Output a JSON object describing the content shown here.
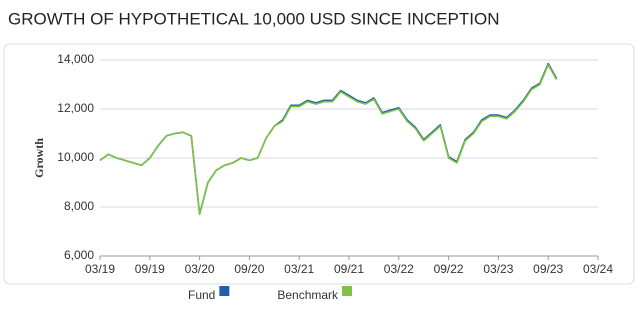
{
  "chart_data": {
    "type": "line",
    "title": "GROWTH OF HYPOTHETICAL 10,000 USD SINCE INCEPTION",
    "y_label": "Growth",
    "x": [
      "2019-03",
      "2019-04",
      "2019-05",
      "2019-06",
      "2019-07",
      "2019-08",
      "2019-09",
      "2019-10",
      "2019-11",
      "2019-12",
      "2020-01",
      "2020-02",
      "2020-03",
      "2020-04",
      "2020-05",
      "2020-06",
      "2020-07",
      "2020-08",
      "2020-09",
      "2020-10",
      "2020-11",
      "2020-12",
      "2021-01",
      "2021-02",
      "2021-03",
      "2021-04",
      "2021-05",
      "2021-06",
      "2021-07",
      "2021-08",
      "2021-09",
      "2021-10",
      "2021-11",
      "2021-12",
      "2022-01",
      "2022-02",
      "2022-03",
      "2022-04",
      "2022-05",
      "2022-06",
      "2022-07",
      "2022-08",
      "2022-09",
      "2022-10",
      "2022-11",
      "2022-12",
      "2023-01",
      "2023-02",
      "2023-03",
      "2023-04",
      "2023-05",
      "2023-06",
      "2023-07",
      "2023-08",
      "2023-09",
      "2023-10"
    ],
    "series": [
      {
        "name": "Fund",
        "color": "#1f5fa8",
        "values": [
          9900,
          10150,
          10000,
          9900,
          9800,
          9700,
          10000,
          10500,
          10900,
          11000,
          11050,
          10900,
          7700,
          9000,
          9500,
          9700,
          9800,
          10000,
          9900,
          10000,
          10800,
          11300,
          11550,
          12150,
          12150,
          12350,
          12250,
          12350,
          12350,
          12750,
          12550,
          12350,
          12250,
          12450,
          11850,
          11950,
          12050,
          11550,
          11250,
          10750,
          11050,
          11350,
          10050,
          9850,
          10750,
          11050,
          11550,
          11750,
          11750,
          11650,
          11950,
          12350,
          12850,
          13050,
          13850,
          13250
        ]
      },
      {
        "name": "Benchmark",
        "color": "#7dc242",
        "values": [
          9900,
          10150,
          10000,
          9900,
          9800,
          9700,
          10000,
          10500,
          10900,
          11000,
          11050,
          10900,
          7700,
          9000,
          9500,
          9700,
          9800,
          10000,
          9900,
          10000,
          10800,
          11300,
          11500,
          12100,
          12100,
          12300,
          12200,
          12300,
          12300,
          12700,
          12500,
          12300,
          12200,
          12400,
          11800,
          11900,
          12000,
          11500,
          11200,
          10700,
          11000,
          11300,
          10000,
          9800,
          10700,
          11000,
          11500,
          11700,
          11700,
          11600,
          11900,
          12300,
          12800,
          13000,
          13800,
          13200
        ]
      }
    ],
    "xlim": [
      "2019-03",
      "2024-03"
    ],
    "xticks": [
      {
        "value": "2019-03",
        "label": "03/19"
      },
      {
        "value": "2019-09",
        "label": "09/19"
      },
      {
        "value": "2020-03",
        "label": "03/20"
      },
      {
        "value": "2020-09",
        "label": "09/20"
      },
      {
        "value": "2021-03",
        "label": "03/21"
      },
      {
        "value": "2021-09",
        "label": "09/21"
      },
      {
        "value": "2022-03",
        "label": "03/22"
      },
      {
        "value": "2022-09",
        "label": "09/22"
      },
      {
        "value": "2023-03",
        "label": "03/23"
      },
      {
        "value": "2023-09",
        "label": "09/23"
      },
      {
        "value": "2024-03",
        "label": "03/24"
      }
    ],
    "ylim": [
      6000,
      14000
    ],
    "yticks": [
      {
        "value": 6000,
        "label": "6,000"
      },
      {
        "value": 8000,
        "label": "8,000"
      },
      {
        "value": 10000,
        "label": "10,000"
      },
      {
        "value": 12000,
        "label": "12,000"
      },
      {
        "value": 14000,
        "label": "14,000"
      }
    ],
    "grid": true
  }
}
